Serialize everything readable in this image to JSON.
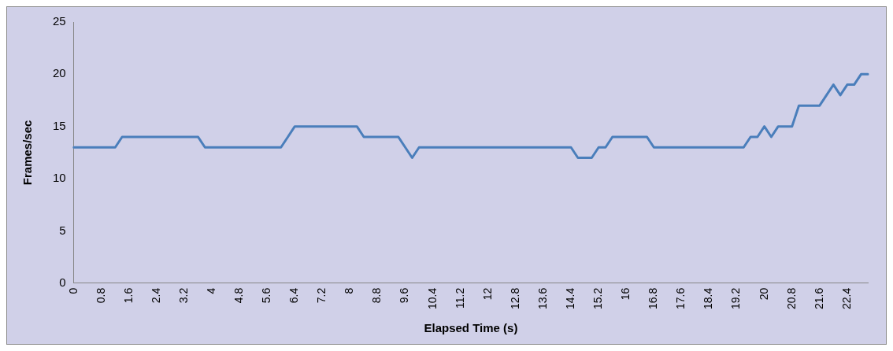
{
  "chart_data": {
    "type": "line",
    "xlabel": "Elapsed Time (s)",
    "ylabel": "Frames/sec",
    "categories": [
      "0",
      null,
      null,
      null,
      "0.8",
      null,
      null,
      null,
      "1.6",
      null,
      null,
      null,
      "2.4",
      null,
      null,
      null,
      "3.2",
      null,
      null,
      null,
      "4",
      null,
      null,
      null,
      "4.8",
      null,
      null,
      null,
      "5.6",
      null,
      null,
      null,
      "6.4",
      null,
      null,
      null,
      "7.2",
      null,
      null,
      null,
      "8",
      null,
      null,
      null,
      "8.8",
      null,
      null,
      null,
      "9.6",
      null,
      null,
      null,
      "10.4",
      null,
      null,
      null,
      "11.2",
      null,
      null,
      null,
      "12",
      null,
      null,
      null,
      "12.8",
      null,
      null,
      null,
      "13.6",
      null,
      null,
      null,
      "14.4",
      null,
      null,
      null,
      "15.2",
      null,
      null,
      null,
      "16",
      null,
      null,
      null,
      "16.8",
      null,
      null,
      null,
      "17.6",
      null,
      null,
      null,
      "18.4",
      null,
      null,
      null,
      "19.2",
      null,
      null,
      null,
      "20",
      null,
      null,
      null,
      "20.8",
      null,
      null,
      null,
      "21.6",
      null,
      null,
      null,
      "22.4",
      null,
      null,
      null
    ],
    "series": [
      {
        "color": "#4a7ebb",
        "values": [
          13,
          13,
          13,
          13,
          13,
          13,
          13,
          14,
          14,
          14,
          14,
          14,
          14,
          14,
          14,
          14,
          14,
          14,
          14,
          13,
          13,
          13,
          13,
          13,
          13,
          13,
          13,
          13,
          13,
          13,
          13,
          14,
          15,
          15,
          15,
          15,
          15,
          15,
          15,
          15,
          15,
          15,
          14,
          14,
          14,
          14,
          14,
          14,
          13,
          12,
          13,
          13,
          13,
          13,
          13,
          13,
          13,
          13,
          13,
          13,
          13,
          13,
          13,
          13,
          13,
          13,
          13,
          13,
          13,
          13,
          13,
          13,
          13,
          12,
          12,
          12,
          13,
          13,
          14,
          14,
          14,
          14,
          14,
          14,
          13,
          13,
          13,
          13,
          13,
          13,
          13,
          13,
          13,
          13,
          13,
          13,
          13,
          13,
          14,
          14,
          15,
          14,
          15,
          15,
          15,
          17,
          17,
          17,
          17,
          18,
          19,
          18,
          19,
          19,
          20,
          20
        ]
      }
    ],
    "ylim": [
      0,
      25
    ],
    "yticks": [
      0,
      5,
      10,
      15,
      20,
      25
    ],
    "marker": "none",
    "line_style": "solid"
  }
}
